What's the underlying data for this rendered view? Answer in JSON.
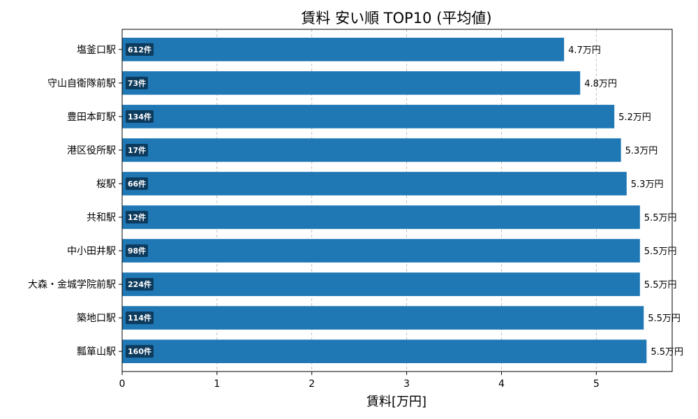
{
  "chart_data": {
    "type": "bar",
    "orientation": "horizontal",
    "title": "賃料 安い順 TOP10 (平均値)",
    "xlabel": "賃料[万円]",
    "ylabel": "",
    "xlim": [
      0,
      5.8
    ],
    "xticks": [
      0,
      1,
      2,
      3,
      4,
      5
    ],
    "grid": "vertical-dashed",
    "bar_color": "#1f77b4",
    "badge_color": "#0d3b5e",
    "categories": [
      "塩釜口駅",
      "守山自衛隊前駅",
      "豊田本町駅",
      "港区役所駅",
      "桜駅",
      "共和駅",
      "中小田井駅",
      "大森・金城学院前駅",
      "築地口駅",
      "瓢箪山駅"
    ],
    "values": [
      4.66,
      4.83,
      5.19,
      5.26,
      5.32,
      5.46,
      5.46,
      5.46,
      5.5,
      5.53
    ],
    "value_labels": [
      "4.7万円",
      "4.8万円",
      "5.2万円",
      "5.3万円",
      "5.3万円",
      "5.5万円",
      "5.5万円",
      "5.5万円",
      "5.5万円",
      "5.5万円"
    ],
    "counts": [
      "612件",
      "73件",
      "134件",
      "17件",
      "66件",
      "12件",
      "98件",
      "224件",
      "114件",
      "160件"
    ]
  }
}
